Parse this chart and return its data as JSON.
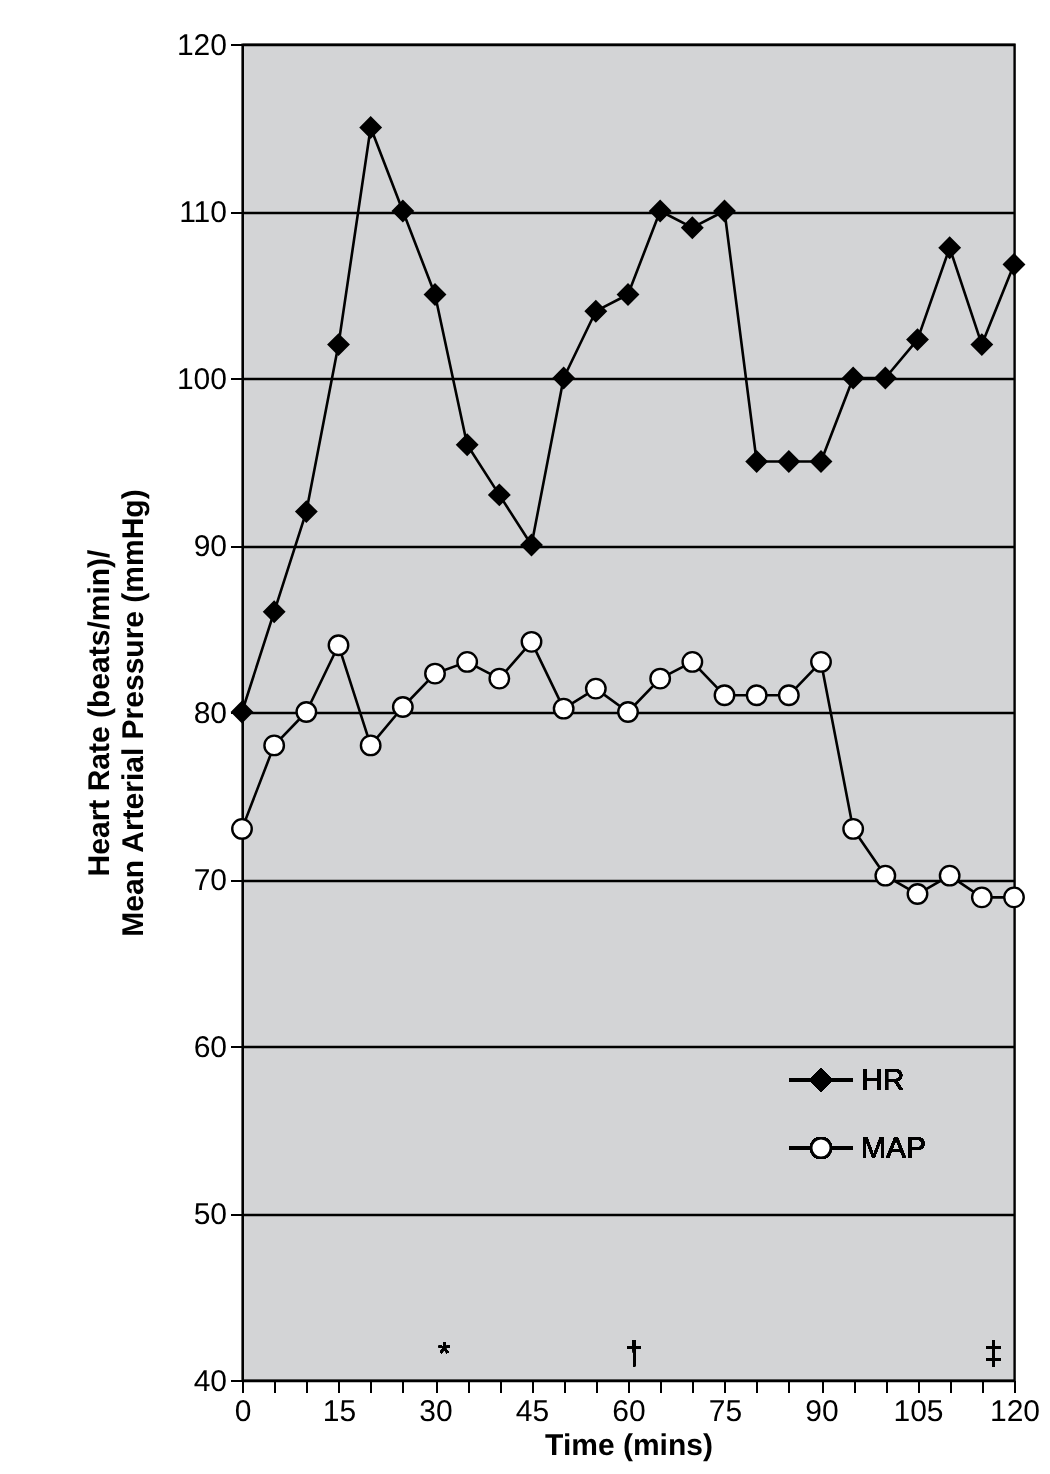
{
  "chart_data": {
    "type": "line",
    "xlabel": "Time (mins)",
    "ylabel": "Heart Rate (beats/min)/\nMean Arterial Pressure (mmHg)",
    "x": [
      0,
      5,
      10,
      15,
      20,
      25,
      30,
      35,
      40,
      45,
      50,
      55,
      60,
      65,
      70,
      75,
      80,
      85,
      90,
      95,
      100,
      105,
      110,
      115,
      120
    ],
    "series": [
      {
        "name": "HR",
        "color": "#000000",
        "marker": "diamond",
        "values": [
          80,
          86,
          92,
          102,
          115,
          110,
          105,
          96,
          93,
          90,
          100,
          104,
          105,
          110,
          109,
          110,
          95,
          95,
          95,
          100,
          100,
          102.3,
          107.8,
          102,
          106.8
        ]
      },
      {
        "name": "MAP",
        "color": "#ffffff",
        "marker": "circle",
        "values": [
          73,
          78,
          80,
          84,
          78,
          80.3,
          82.3,
          83,
          82,
          84.2,
          80.2,
          81.4,
          80,
          82,
          83,
          81,
          81,
          81,
          83,
          73,
          70.2,
          69.1,
          70.2,
          68.9,
          68.9
        ]
      }
    ],
    "xlim": [
      0,
      120
    ],
    "xticks": [
      0,
      {
        "value": 5,
        "label": null
      },
      {
        "value": 10,
        "label": null
      },
      15,
      {
        "value": 20,
        "label": null
      },
      {
        "value": 25,
        "label": null
      },
      30,
      {
        "value": 35,
        "label": null
      },
      {
        "value": 40,
        "label": null
      },
      45,
      {
        "value": 50,
        "label": null
      },
      {
        "value": 55,
        "label": null
      },
      60,
      {
        "value": 65,
        "label": null
      },
      {
        "value": 70,
        "label": null
      },
      75,
      {
        "value": 80,
        "label": null
      },
      {
        "value": 85,
        "label": null
      },
      90,
      {
        "value": 95,
        "label": null
      },
      {
        "value": 100,
        "label": null
      },
      105,
      {
        "value": 110,
        "label": null
      },
      {
        "value": 115,
        "label": null
      },
      120
    ],
    "ylim": [
      40,
      120
    ],
    "yticks": [
      40,
      50,
      60,
      70,
      80,
      90,
      100,
      110,
      120
    ],
    "grid": "y",
    "legend": "bottom right",
    "line_style": "solid",
    "annotations": [
      "*",
      "†",
      "‡"
    ]
  }
}
